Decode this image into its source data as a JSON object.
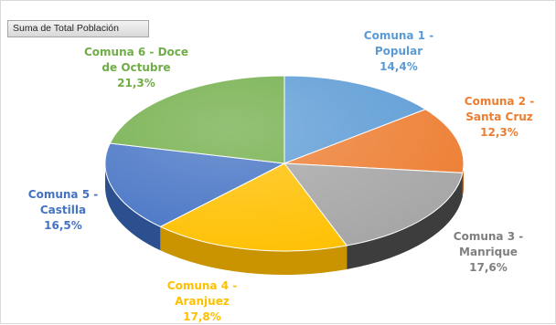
{
  "field_button": {
    "label": "Suma de Total Población"
  },
  "chart_data": {
    "type": "pie",
    "style": "3d",
    "legend": "none",
    "title": "",
    "slices": [
      {
        "label_lines": [
          "Comuna 1 -",
          "Popular"
        ],
        "value": 14.4,
        "value_label": "14,4%",
        "color": "#5b9bd5",
        "side_color": "#3f79ad"
      },
      {
        "label_lines": [
          "Comuna 2 -",
          "Santa Cruz"
        ],
        "value": 12.3,
        "value_label": "12,3%",
        "color": "#ed7d31",
        "side_color": "#b85d1f"
      },
      {
        "label_lines": [
          "Comuna 3 -",
          "Manrique"
        ],
        "value": 17.6,
        "value_label": "17,6%",
        "color": "#a5a5a5",
        "side_color": "#3d3d3d"
      },
      {
        "label_lines": [
          "Comuna 4 -",
          "Aranjuez"
        ],
        "value": 17.8,
        "value_label": "17,8%",
        "color": "#ffc000",
        "side_color": "#c99400"
      },
      {
        "label_lines": [
          "Comuna 5 -",
          "Castilla"
        ],
        "value": 16.5,
        "value_label": "16,5%",
        "color": "#4472c4",
        "side_color": "#2c4f8f"
      },
      {
        "label_lines": [
          "Comuna 6 - Doce",
          "de Octubre"
        ],
        "value": 21.3,
        "value_label": "21,3%",
        "color": "#70ad47",
        "side_color": "#4f7d31"
      }
    ],
    "label_colors": [
      "#5b9bd5",
      "#ed7d31",
      "#7f7f7f",
      "#ffc000",
      "#4472c4",
      "#70ad47"
    ]
  }
}
